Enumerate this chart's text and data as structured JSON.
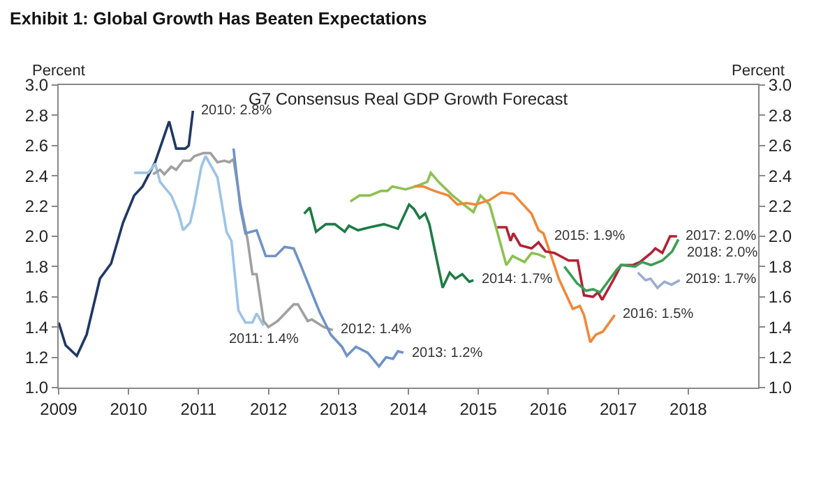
{
  "chart_data": {
    "type": "line",
    "title": "Exhibit 1: Global Growth Has Beaten Expectations",
    "subtitle": "G7 Consensus Real GDP Growth Forecast",
    "ylabel": "Percent",
    "y2label": "Percent",
    "xlim": [
      2009,
      2019
    ],
    "xticks": [
      2009,
      2010,
      2011,
      2012,
      2013,
      2014,
      2015,
      2016,
      2017,
      2018
    ],
    "ylim": [
      1.0,
      3.0
    ],
    "yticks": [
      {
        "value": 1.0,
        "label": "1.0"
      },
      {
        "value": 1.2,
        "label": "1.2"
      },
      {
        "value": 1.4,
        "label": "1.4"
      },
      {
        "value": 1.6,
        "label": "1.6"
      },
      {
        "value": 1.8,
        "label": "1.8"
      },
      {
        "value": 2.0,
        "label": "2.0"
      },
      {
        "value": 2.2,
        "label": "2.2"
      },
      {
        "value": 2.4,
        "label": "2.4"
      },
      {
        "value": 2.6,
        "label": "2.6"
      },
      {
        "value": 2.8,
        "label": "2.8"
      },
      {
        "value": 3.0,
        "label": "3.0"
      }
    ],
    "y2lim": [
      1.0,
      3.0
    ],
    "y2ticks": [
      {
        "value": 1.0,
        "label": "1.0"
      },
      {
        "value": 1.2,
        "label": "1.2"
      },
      {
        "value": 1.4,
        "label": "1.4"
      },
      {
        "value": 1.6,
        "label": "1.6"
      },
      {
        "value": 1.8,
        "label": "1.8"
      },
      {
        "value": 2.0,
        "label": "2.0"
      },
      {
        "value": 2.2,
        "label": "2.2"
      },
      {
        "value": 2.4,
        "label": "2.4"
      },
      {
        "value": 2.6,
        "label": "2.6"
      },
      {
        "value": 2.8,
        "label": "2.8"
      },
      {
        "value": 3.0,
        "label": "3.0"
      }
    ],
    "grid": false,
    "legend": false,
    "marker": "none",
    "line_style": "solid",
    "series": [
      {
        "name": "2010: 2.8%",
        "color": "#1f3864",
        "x": [
          2009.0,
          2009.1,
          2009.26,
          2009.4,
          2009.59,
          2009.75,
          2009.92,
          2010.08,
          2010.2,
          2010.38,
          2010.58,
          2010.68,
          2010.81,
          2010.86,
          2010.92
        ],
        "values": [
          1.43,
          1.28,
          1.21,
          1.35,
          1.72,
          1.82,
          2.09,
          2.27,
          2.33,
          2.49,
          2.76,
          2.58,
          2.58,
          2.6,
          2.83
        ]
      },
      {
        "name": "2011: 1.4%",
        "color": "#9dc3e6",
        "x": [
          2010.08,
          2010.28,
          2010.38,
          2010.45,
          2010.61,
          2010.71,
          2010.78,
          2010.88,
          2010.94,
          2011.04,
          2011.1,
          2011.27,
          2011.4,
          2011.47,
          2011.57,
          2011.67,
          2011.77,
          2011.83,
          2011.93
        ],
        "values": [
          2.42,
          2.42,
          2.48,
          2.36,
          2.27,
          2.16,
          2.04,
          2.09,
          2.21,
          2.46,
          2.53,
          2.39,
          2.03,
          1.97,
          1.51,
          1.43,
          1.43,
          1.49,
          1.41
        ]
      },
      {
        "name": "2012: 1.4%",
        "color": "#a0a0a0",
        "x": [
          2010.35,
          2010.45,
          2010.51,
          2010.61,
          2010.68,
          2010.78,
          2010.88,
          2010.94,
          2011.07,
          2011.17,
          2011.27,
          2011.37,
          2011.44,
          2011.5,
          2011.6,
          2011.7,
          2011.77,
          2011.83,
          2011.93,
          2012.0,
          2012.13,
          2012.36,
          2012.42,
          2012.56,
          2012.62,
          2012.79,
          2012.92
        ],
        "values": [
          2.41,
          2.44,
          2.41,
          2.46,
          2.44,
          2.5,
          2.5,
          2.53,
          2.55,
          2.55,
          2.49,
          2.5,
          2.49,
          2.51,
          2.21,
          1.98,
          1.75,
          1.75,
          1.44,
          1.4,
          1.44,
          1.55,
          1.55,
          1.44,
          1.45,
          1.4,
          1.38
        ]
      },
      {
        "name": "2013: 1.2%",
        "color": "#6f93c8",
        "x": [
          2011.5,
          2011.6,
          2011.67,
          2011.83,
          2011.96,
          2012.1,
          2012.23,
          2012.36,
          2012.46,
          2012.59,
          2012.73,
          2012.89,
          2013.05,
          2013.12,
          2013.25,
          2013.42,
          2013.58,
          2013.68,
          2013.78,
          2013.85,
          2013.93
        ],
        "values": [
          2.58,
          2.18,
          2.02,
          2.04,
          1.87,
          1.87,
          1.93,
          1.92,
          1.81,
          1.66,
          1.5,
          1.35,
          1.27,
          1.21,
          1.27,
          1.23,
          1.14,
          1.2,
          1.19,
          1.24,
          1.23
        ]
      },
      {
        "name": "2014: 1.7%",
        "color": "#1e7b45",
        "x": [
          2012.51,
          2012.59,
          2012.68,
          2012.82,
          2012.95,
          2013.09,
          2013.15,
          2013.28,
          2013.45,
          2013.65,
          2013.85,
          2014.01,
          2014.08,
          2014.16,
          2014.24,
          2014.3,
          2014.49,
          2014.59,
          2014.67,
          2014.77,
          2014.87,
          2014.93
        ],
        "values": [
          2.15,
          2.19,
          2.03,
          2.08,
          2.08,
          2.03,
          2.07,
          2.04,
          2.06,
          2.08,
          2.05,
          2.21,
          2.18,
          2.12,
          2.15,
          2.08,
          1.66,
          1.76,
          1.72,
          1.75,
          1.7,
          1.71
        ]
      },
      {
        "name": "2015: 1.9%",
        "color": "#8cc152",
        "x": [
          2013.17,
          2013.3,
          2013.45,
          2013.61,
          2013.7,
          2013.77,
          2013.96,
          2014.1,
          2014.27,
          2014.32,
          2014.43,
          2014.63,
          2014.79,
          2014.93,
          2015.03,
          2015.16,
          2015.27,
          2015.4,
          2015.49,
          2015.53,
          2015.66,
          2015.76,
          2015.86,
          2015.96
        ],
        "values": [
          2.23,
          2.27,
          2.27,
          2.3,
          2.3,
          2.33,
          2.31,
          2.33,
          2.36,
          2.42,
          2.36,
          2.27,
          2.21,
          2.16,
          2.27,
          2.21,
          2.03,
          1.81,
          1.87,
          1.86,
          1.83,
          1.89,
          1.88,
          1.86
        ]
      },
      {
        "name": "2016: 1.5%",
        "color": "#f0883a",
        "x": [
          2014.08,
          2014.21,
          2014.37,
          2014.57,
          2014.7,
          2014.83,
          2014.96,
          2015.16,
          2015.33,
          2015.5,
          2015.6,
          2015.76,
          2015.86,
          2015.93,
          2016.02,
          2016.15,
          2016.35,
          2016.45,
          2016.51,
          2016.6,
          2016.68,
          2016.78,
          2016.95
        ],
        "values": [
          2.33,
          2.33,
          2.3,
          2.27,
          2.21,
          2.22,
          2.21,
          2.24,
          2.29,
          2.28,
          2.23,
          2.15,
          2.04,
          2.02,
          1.9,
          1.72,
          1.52,
          1.54,
          1.48,
          1.3,
          1.35,
          1.37,
          1.48
        ]
      },
      {
        "name": "2017: 2.0%",
        "color": "#b22234",
        "x": [
          2015.27,
          2015.4,
          2015.46,
          2015.5,
          2015.6,
          2015.76,
          2015.86,
          2015.96,
          2016.09,
          2016.29,
          2016.42,
          2016.51,
          2016.64,
          2016.71,
          2016.77,
          2016.94,
          2017.04,
          2017.21,
          2017.31,
          2017.47,
          2017.53,
          2017.63,
          2017.74,
          2017.84
        ],
        "values": [
          2.06,
          2.06,
          1.97,
          2.02,
          1.94,
          1.92,
          1.96,
          1.9,
          1.89,
          1.84,
          1.84,
          1.61,
          1.6,
          1.63,
          1.58,
          1.72,
          1.81,
          1.81,
          1.83,
          1.89,
          1.92,
          1.89,
          2.0,
          2.0
        ]
      },
      {
        "name": "2018: 2.0%",
        "color": "#3a9e55",
        "x": [
          2016.23,
          2016.41,
          2016.54,
          2016.64,
          2016.74,
          2016.98,
          2017.04,
          2017.24,
          2017.34,
          2017.47,
          2017.63,
          2017.77,
          2017.86
        ],
        "values": [
          1.8,
          1.69,
          1.64,
          1.65,
          1.63,
          1.78,
          1.81,
          1.8,
          1.83,
          1.81,
          1.84,
          1.9,
          1.98
        ]
      },
      {
        "name": "2019: 1.7%",
        "color": "#9aaed0",
        "x": [
          2017.28,
          2017.39,
          2017.46,
          2017.56,
          2017.66,
          2017.76,
          2017.88
        ],
        "values": [
          1.76,
          1.71,
          1.72,
          1.66,
          1.7,
          1.68,
          1.71
        ]
      }
    ]
  }
}
